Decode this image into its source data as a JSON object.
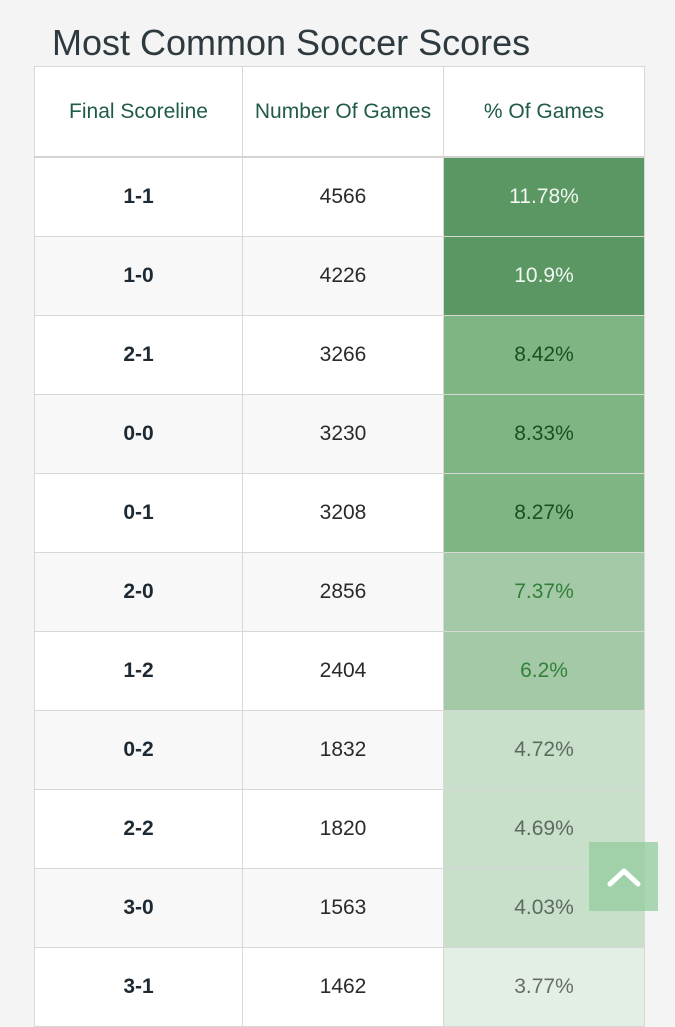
{
  "page": {
    "title": "Most Common Soccer Scores"
  },
  "table": {
    "headers": [
      "Final Scoreline",
      "Number Of Games",
      "% Of Games"
    ],
    "rows": [
      {
        "score": "1-1",
        "games": "4566",
        "pct": "11.78%"
      },
      {
        "score": "1-0",
        "games": "4226",
        "pct": "10.9%"
      },
      {
        "score": "2-1",
        "games": "3266",
        "pct": "8.42%"
      },
      {
        "score": "0-0",
        "games": "3230",
        "pct": "8.33%"
      },
      {
        "score": "0-1",
        "games": "3208",
        "pct": "8.27%"
      },
      {
        "score": "2-0",
        "games": "2856",
        "pct": "7.37%"
      },
      {
        "score": "1-2",
        "games": "2404",
        "pct": "6.2%"
      },
      {
        "score": "0-2",
        "games": "1832",
        "pct": "4.72%"
      },
      {
        "score": "2-2",
        "games": "1820",
        "pct": "4.69%"
      },
      {
        "score": "3-0",
        "games": "1563",
        "pct": "4.03%"
      },
      {
        "score": "3-1",
        "games": "1462",
        "pct": "3.77%"
      }
    ]
  },
  "colors": {
    "header_text": "#1f5b45",
    "heat_darkest": "#5a9762",
    "heat_dark": "#7fb583",
    "heat_mid": "#a3c9a6",
    "heat_light": "#c8dfca",
    "heat_lightest": "#e3efe4"
  },
  "icons": {
    "scroll_top": "chevron-up-icon"
  }
}
